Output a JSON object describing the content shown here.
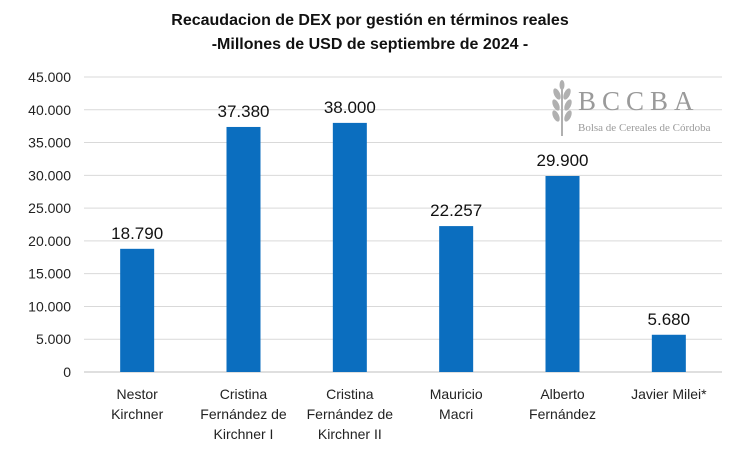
{
  "chart_data": {
    "type": "bar",
    "title": "Recaudacion de DEX por gestión en términos reales",
    "subtitle": "-Millones de USD de septiembre de 2024 -",
    "categories": [
      [
        "Nestor",
        "Kirchner"
      ],
      [
        "Cristina",
        "Fernández de",
        "Kirchner I"
      ],
      [
        "Cristina",
        "Fernández de",
        "Kirchner II"
      ],
      [
        "Mauricio",
        "Macri"
      ],
      [
        "Alberto",
        "Fernández"
      ],
      [
        "Javier Milei*"
      ]
    ],
    "values": [
      18790,
      37380,
      38000,
      22257,
      29900,
      5680
    ],
    "value_labels": [
      "18.790",
      "37.380",
      "38.000",
      "22.257",
      "29.900",
      "5.680"
    ],
    "y_ticks": [
      0,
      5000,
      10000,
      15000,
      20000,
      25000,
      30000,
      35000,
      40000,
      45000
    ],
    "y_tick_labels": [
      "0",
      "5.000",
      "10.000",
      "15.000",
      "20.000",
      "25.000",
      "30.000",
      "35.000",
      "40.000",
      "45.000"
    ],
    "ylim": [
      0,
      45000
    ],
    "grid": true,
    "legend": "none",
    "bar_color": "#0b6ebf",
    "grid_color": "#d9d9d9"
  },
  "logo": {
    "name": "BCCBA",
    "subtitle": "Bolsa de Cereales de Córdoba",
    "color": "#9a9a9a"
  }
}
